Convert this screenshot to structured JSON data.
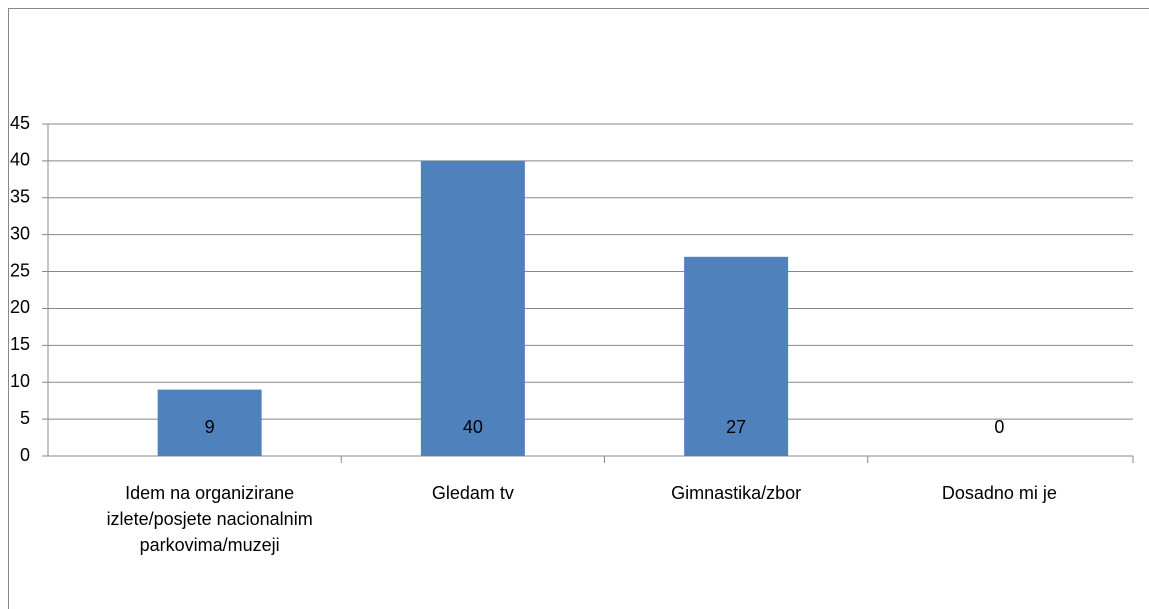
{
  "chart_data": {
    "type": "bar",
    "categories": [
      "Idem na organizirane izlete/posjete nacionalnim parkovima/muzeji",
      "Gledam tv",
      "Gimnastika/zbor",
      "Dosadno mi je"
    ],
    "values": [
      9,
      40,
      27,
      0
    ],
    "color": "#4f81bd",
    "ylim": [
      0,
      45
    ],
    "yticks": [
      0,
      5,
      10,
      15,
      20,
      25,
      30,
      35,
      40,
      45
    ],
    "grid": true
  }
}
